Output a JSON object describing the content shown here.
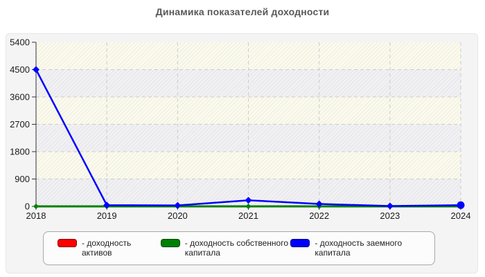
{
  "chart_data": {
    "type": "line",
    "title": "Динамика показателей доходности",
    "categories": [
      "2018",
      "2019",
      "2020",
      "2021",
      "2022",
      "2023",
      "2024"
    ],
    "yticks": [
      0,
      900,
      1800,
      2700,
      3600,
      4500,
      5400
    ],
    "ylim": [
      0,
      5400
    ],
    "xlabel": "",
    "ylabel": "",
    "grid": true,
    "legend_position": "bottom",
    "series": [
      {
        "name": "доходность активов",
        "color": "#ff0000",
        "line_width": 2,
        "values": [
          0,
          0,
          0,
          0,
          0,
          0,
          0
        ]
      },
      {
        "name": "доходность собственного капитала",
        "color": "#008000",
        "line_width": 3,
        "values": [
          0,
          0,
          0,
          0,
          0,
          0,
          0
        ]
      },
      {
        "name": "доходность заемного капитала",
        "color": "#0000ff",
        "line_width": 2.5,
        "values": [
          4500,
          40,
          30,
          200,
          80,
          10,
          40
        ]
      }
    ]
  },
  "legend": {
    "items": [
      {
        "label": "- доходность активов",
        "color": "#ff0000"
      },
      {
        "label": "- доходность собственного капитала",
        "color": "#008000"
      },
      {
        "label": "- доходность заемного капитала",
        "color": "#0000ff"
      }
    ]
  },
  "style": {
    "grid_color": "#cccccc",
    "axis_color": "#333333",
    "tick_label_color": "#1a1a1a",
    "title_color": "#58585a"
  }
}
